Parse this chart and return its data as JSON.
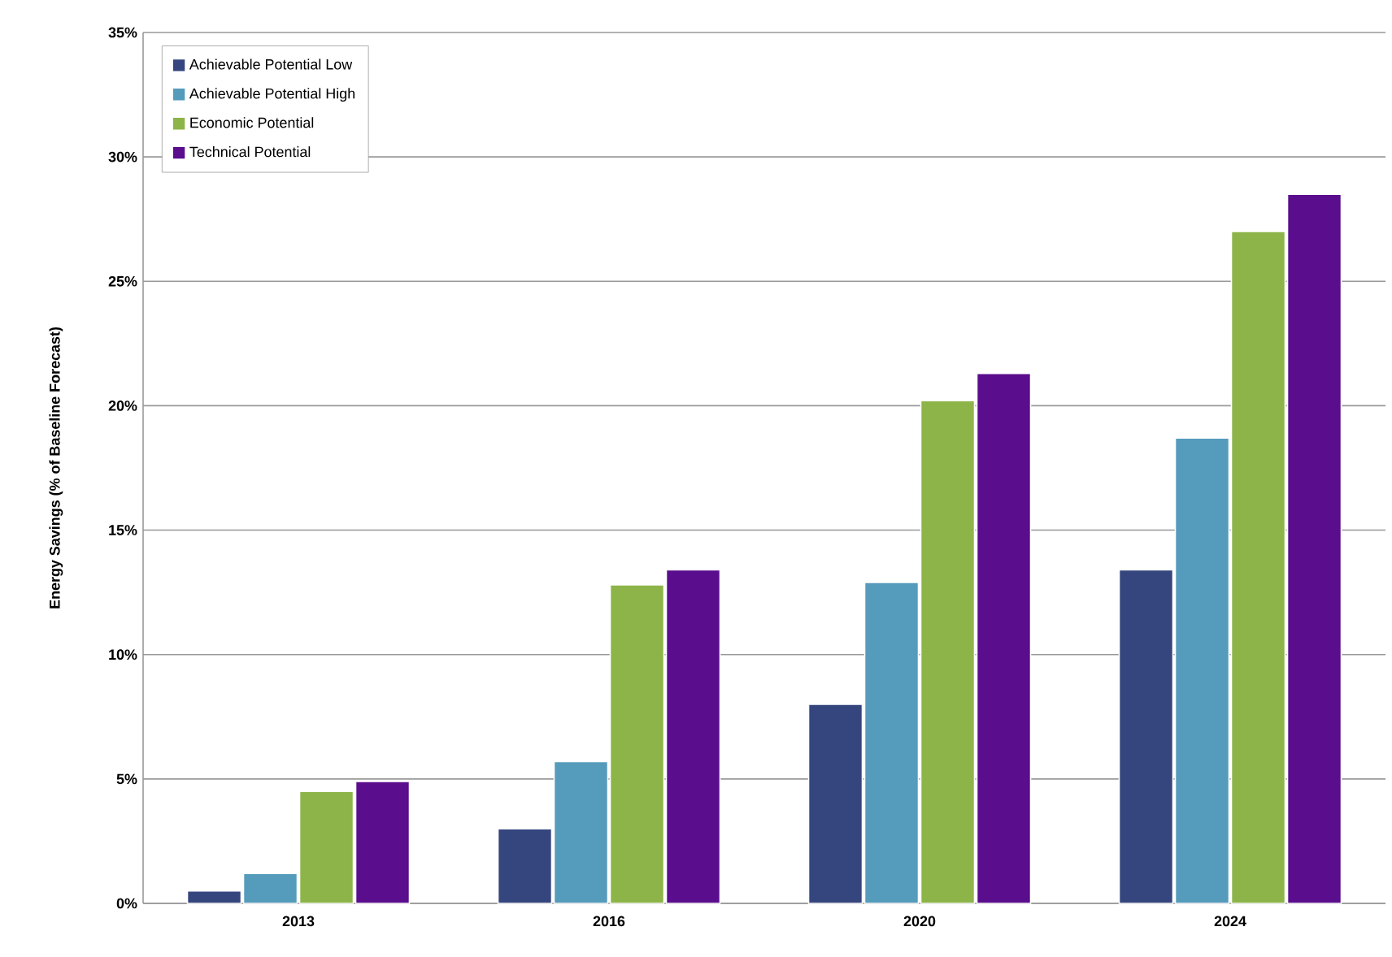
{
  "chart_data": {
    "type": "bar",
    "ylabel": "Energy Savings (% of Baseline Forecast)",
    "categories": [
      "2013",
      "2016",
      "2020",
      "2024"
    ],
    "series": [
      {
        "name": "Achievable Potential Low",
        "color": "#35467e",
        "values": [
          0.5,
          3.0,
          8.0,
          13.4
        ]
      },
      {
        "name": "Achievable Potential High",
        "color": "#559bbb",
        "values": [
          1.2,
          5.7,
          12.9,
          18.7
        ]
      },
      {
        "name": "Economic Potential",
        "color": "#8db448",
        "values": [
          4.5,
          12.8,
          20.2,
          27.0
        ]
      },
      {
        "name": "Technical Potential",
        "color": "#5a0d8d",
        "values": [
          4.9,
          13.4,
          21.3,
          28.5
        ]
      }
    ],
    "ylim": [
      0,
      35
    ],
    "yticks": [
      {
        "value": 0,
        "label": "0%"
      },
      {
        "value": 5,
        "label": "5%"
      },
      {
        "value": 10,
        "label": "10%"
      },
      {
        "value": 15,
        "label": "15%"
      },
      {
        "value": 20,
        "label": "20%"
      },
      {
        "value": 25,
        "label": "25%"
      },
      {
        "value": 30,
        "label": "30%"
      },
      {
        "value": 35,
        "label": "35%"
      }
    ],
    "grid": "y",
    "legend": "top left"
  }
}
